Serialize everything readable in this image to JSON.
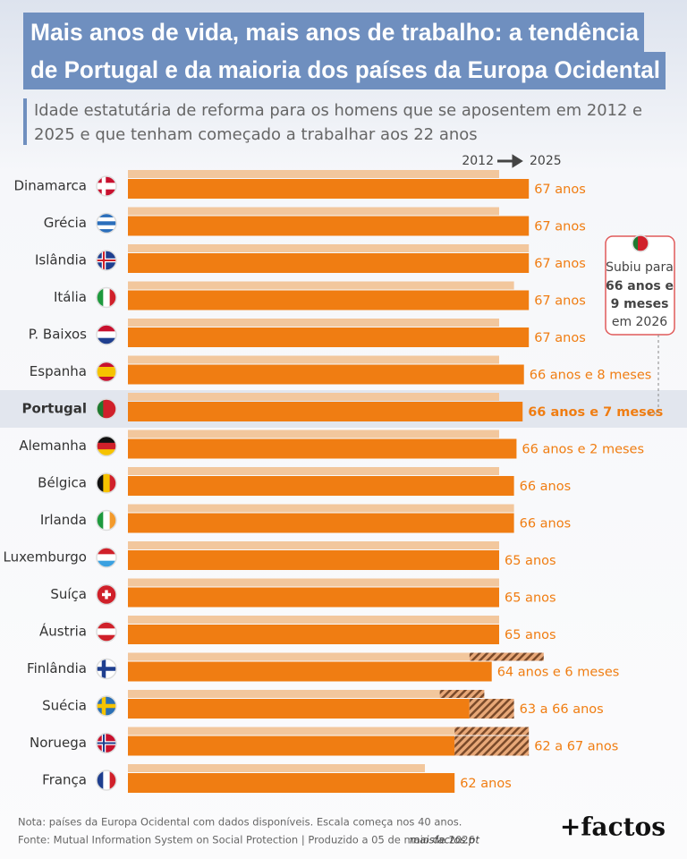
{
  "chart_data": {
    "type": "bar",
    "title_lines": [
      "Mais anos de vida, mais anos de trabalho: a tendência",
      "de Portugal e da maioria dos países da Europa Ocidental"
    ],
    "subtitle_lines": [
      "Idade estatutária de reforma para os homens que se aposentem em 2012 e",
      "2025 e que tenham começado a trabalhar aos 22 anos"
    ],
    "categories": [
      "Dinamarca",
      "Grécia",
      "Islândia",
      "Itália",
      "P. Baixos",
      "Espanha",
      "Portugal",
      "Alemanha",
      "Bélgica",
      "Irlanda",
      "Luxemburgo",
      "Suíça",
      "Áustria",
      "Finlândia",
      "Suécia",
      "Noruega",
      "França"
    ],
    "highlight": "Portugal",
    "xlim": [
      40,
      70
    ],
    "series": [
      {
        "name": "2012",
        "color": "#f2c79d",
        "values": [
          65,
          65,
          67,
          66,
          65,
          65,
          65,
          65,
          65,
          66,
          65,
          65,
          65,
          63,
          61,
          62,
          60
        ],
        "range_end": [
          null,
          null,
          null,
          null,
          null,
          null,
          null,
          null,
          null,
          null,
          null,
          null,
          null,
          68,
          64,
          67,
          null
        ]
      },
      {
        "name": "2025",
        "color": "#f07d12",
        "values": [
          67,
          67,
          67,
          67,
          67,
          66.67,
          66.58,
          66.17,
          66,
          66,
          65,
          65,
          65,
          64.5,
          63,
          62,
          62
        ],
        "range_end": [
          null,
          null,
          null,
          null,
          null,
          null,
          null,
          null,
          null,
          null,
          null,
          null,
          null,
          null,
          66,
          67,
          null
        ],
        "value_labels": [
          "67 anos",
          "67 anos",
          "67 anos",
          "67 anos",
          "67 anos",
          "66 anos e 8 meses",
          "66 anos e 7 meses",
          "66 anos e 2 meses",
          "66 anos",
          "66 anos",
          "65 anos",
          "65 anos",
          "65 anos",
          "64 anos e 6 meses",
          "63 a 66 anos",
          "62 a 67 anos",
          "62 anos"
        ]
      }
    ],
    "annotation": {
      "lines": [
        "Subiu para",
        "66 anos e",
        "9 meses",
        "em 2026"
      ]
    },
    "note": "Nota: países da Europa Ocidental com dados disponíveis. Escala começa nos 40 anos.",
    "source": "Fonte: Mutual Information System on Social Protection  |  Produzido a 05 de maio de 2026",
    "site": "maisfactos.pt",
    "logo": "+factos"
  }
}
